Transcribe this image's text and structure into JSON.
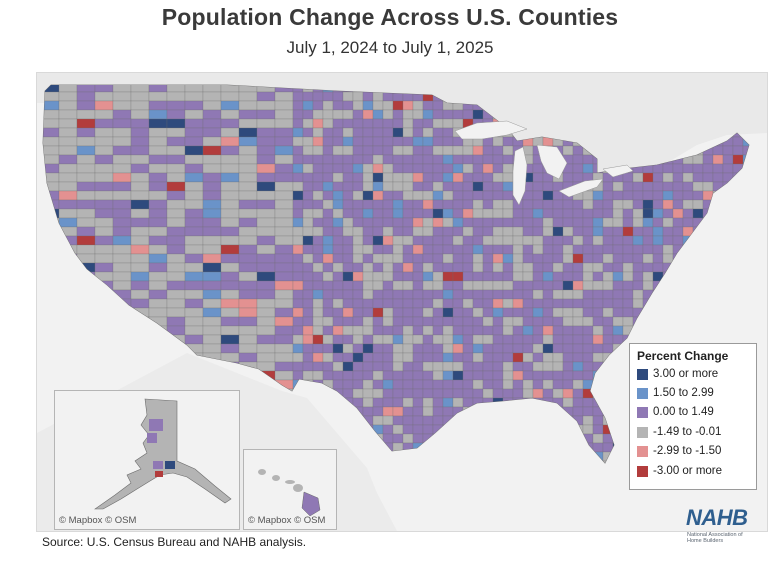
{
  "title": "Population Change Across U.S. Counties",
  "subtitle": "July 1, 2024  to July 1, 2025",
  "legend": {
    "title": "Percent Change",
    "items": [
      {
        "label": "3.00 or more",
        "color": "#2e4a7d"
      },
      {
        "label": "1.50 to 2.99",
        "color": "#6a93c9"
      },
      {
        "label": "0.00 to 1.49",
        "color": "#8f78b4"
      },
      {
        "label": "-1.49 to -0.01",
        "color": "#b4b4b4"
      },
      {
        "label": "-2.99 to -1.50",
        "color": "#e39191"
      },
      {
        "label": "-3.00 or more",
        "color": "#b23c3c"
      }
    ]
  },
  "insets": {
    "alaska": {
      "attribution": "© Mapbox  © OSM"
    },
    "hawaii": {
      "attribution": "© Mapbox  © OSM"
    }
  },
  "source": "Source: U.S. Census Bureau and NAHB analysis.",
  "logo": {
    "wordmark": "NAHB",
    "tagline": "National Association of Home Builders"
  }
}
